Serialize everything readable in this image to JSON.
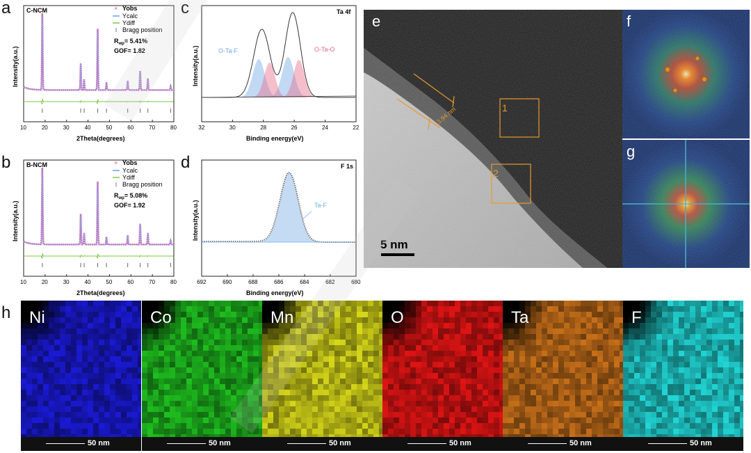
{
  "panel_labels": {
    "a": "a",
    "b": "b",
    "c": "c",
    "d": "d",
    "e": "e",
    "f": "f",
    "g": "g",
    "h": "h"
  },
  "panel_a": {
    "sample": "C-NCM",
    "legend": [
      "Yobs",
      "Ycalc",
      "Ydiff",
      "Bragg position"
    ],
    "rwp_prefix": "R",
    "rwp_sub": "wp",
    "rwp_value": "= 5.41%",
    "gof": "GOF= 1.82",
    "ylabel": "Intensity(a.u.)",
    "xlabel": "2Theta(degrees)",
    "xticks": [
      "10",
      "20",
      "30",
      "40",
      "50",
      "60",
      "70",
      "80"
    ]
  },
  "panel_b": {
    "sample": "B-NCM",
    "legend": [
      "Yobs",
      "Ycalc",
      "Ydiff",
      "Bragg position"
    ],
    "rwp_prefix": "R",
    "rwp_sub": "wp",
    "rwp_value": "= 5.08%",
    "gof": "GOF= 1.92",
    "ylabel": "Intensity(a.u.)",
    "xlabel": "2Theta(degrees)",
    "xticks": [
      "10",
      "20",
      "30",
      "40",
      "50",
      "60",
      "70",
      "80"
    ]
  },
  "panel_c": {
    "title": "Ta 4f",
    "label_left": "O-Ta-F",
    "label_right": "O-Ta-O",
    "ylabel": "Intensity(a.u.)",
    "xlabel": "Binding energy(eV)",
    "xticks": [
      "32",
      "30",
      "28",
      "26",
      "24",
      "22"
    ]
  },
  "panel_d": {
    "title": "F 1s",
    "label_peak": "Ta-F",
    "ylabel": "Intensity(a.u.)",
    "xlabel": "Binding energy(eV)",
    "xticks": [
      "692",
      "690",
      "688",
      "686",
      "684",
      "682",
      "680"
    ]
  },
  "panel_e": {
    "box1": "1",
    "box2": "2",
    "thickness": "~3.94 nm",
    "scalebar": "5 nm"
  },
  "maps": [
    {
      "element": "Ni",
      "color": "#1a1ad6",
      "scalebar": "50 nm"
    },
    {
      "element": "Co",
      "color": "#1fbf1f",
      "scalebar": "50 nm"
    },
    {
      "element": "Mn",
      "color": "#d8d81a",
      "scalebar": "50 nm"
    },
    {
      "element": "O",
      "color": "#e01414",
      "scalebar": "50 nm"
    },
    {
      "element": "Ta",
      "color": "#c8701a",
      "scalebar": "50 nm"
    },
    {
      "element": "F",
      "color": "#22d6d6",
      "scalebar": "50 nm"
    }
  ],
  "chart_data": [
    {
      "type": "line",
      "title": "C-NCM",
      "xlabel": "2Theta(degrees)",
      "ylabel": "Intensity(a.u.)",
      "xlim": [
        10,
        80
      ],
      "series": [
        {
          "name": "Yobs",
          "peaks_x": [
            18.7,
            36.6,
            38.2,
            44.5,
            48.6,
            58.5,
            64.3,
            67.9,
            78.5
          ],
          "peaks_rel": [
            1.0,
            0.35,
            0.14,
            0.8,
            0.1,
            0.12,
            0.25,
            0.15,
            0.05
          ]
        },
        {
          "name": "Ycalc"
        },
        {
          "name": "Ydiff"
        },
        {
          "name": "Bragg position"
        }
      ]
    },
    {
      "type": "line",
      "title": "B-NCM",
      "xlabel": "2Theta(degrees)",
      "ylabel": "Intensity(a.u.)",
      "xlim": [
        10,
        80
      ],
      "series": [
        {
          "name": "Yobs",
          "peaks_x": [
            18.7,
            36.6,
            38.2,
            44.5,
            48.6,
            58.5,
            64.3,
            67.9,
            78.5
          ],
          "peaks_rel": [
            1.0,
            0.4,
            0.15,
            0.82,
            0.1,
            0.12,
            0.27,
            0.15,
            0.05
          ]
        },
        {
          "name": "Ycalc"
        },
        {
          "name": "Ydiff"
        },
        {
          "name": "Bragg position"
        }
      ]
    },
    {
      "type": "line",
      "title": "Ta 4f",
      "xlabel": "Binding energy(eV)",
      "ylabel": "Intensity(a.u.)",
      "xlim": [
        32,
        22
      ],
      "series": [
        {
          "name": "O-Ta-F",
          "peaks_x": [
            28.3,
            26.4
          ]
        },
        {
          "name": "O-Ta-O",
          "peaks_x": [
            27.6,
            25.7
          ]
        }
      ]
    },
    {
      "type": "line",
      "title": "F 1s",
      "xlabel": "Binding energy(eV)",
      "ylabel": "Intensity(a.u.)",
      "xlim": [
        692,
        680
      ],
      "series": [
        {
          "name": "Ta-F",
          "peaks_x": [
            685.2
          ]
        }
      ]
    }
  ]
}
